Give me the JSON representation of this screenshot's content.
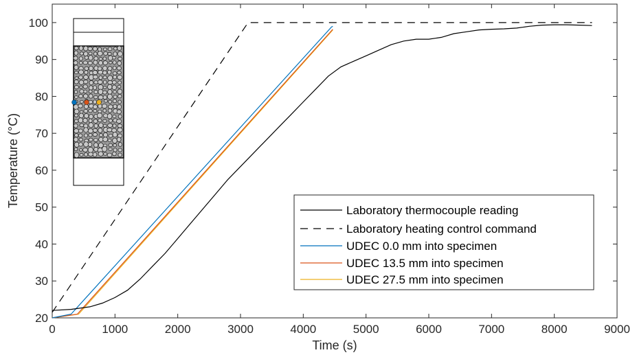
{
  "chart_data": {
    "type": "line",
    "xlabel": "Time (s)",
    "ylabel": "Temperature (°C)",
    "xlim": [
      0,
      9000
    ],
    "ylim": [
      20,
      105
    ],
    "xticks": [
      0,
      1000,
      2000,
      3000,
      4000,
      5000,
      6000,
      7000,
      8000,
      9000
    ],
    "yticks": [
      20,
      30,
      40,
      50,
      60,
      70,
      80,
      90,
      100
    ],
    "grid": false,
    "legend_position": "bottom-right",
    "series": [
      {
        "name": "Laboratory thermocouple reading",
        "color": "#000000",
        "style": "solid",
        "x": [
          0,
          300,
          600,
          800,
          1000,
          1200,
          1400,
          1600,
          1800,
          2000,
          2200,
          2400,
          2600,
          2800,
          3000,
          3200,
          3400,
          3600,
          3800,
          4000,
          4200,
          4400,
          4600,
          4800,
          5000,
          5200,
          5400,
          5600,
          5800,
          6000,
          6200,
          6400,
          6600,
          6800,
          7000,
          7200,
          7400,
          7600,
          7800,
          8000,
          8200,
          8400,
          8600
        ],
        "y": [
          22,
          22.3,
          23,
          24,
          25.5,
          27.5,
          30.5,
          34,
          37.5,
          41.5,
          45.5,
          49.5,
          53.5,
          57.5,
          61,
          64.5,
          68,
          71.5,
          75,
          78.5,
          82,
          85.5,
          88,
          89.5,
          91,
          92.5,
          94,
          95,
          95.5,
          95.5,
          96,
          97,
          97.5,
          98,
          98.2,
          98.3,
          98.5,
          99,
          99.3,
          99.4,
          99.4,
          99.3,
          99.2
        ]
      },
      {
        "name": "Laboratory heating control command",
        "color": "#000000",
        "style": "dashed",
        "x": [
          0,
          3120,
          8600
        ],
        "y": [
          21.5,
          100,
          100
        ]
      },
      {
        "name": "UDEC 0.0 mm into specimen",
        "color": "#0072BD",
        "style": "solid",
        "x": [
          0,
          300,
          4450,
          4470
        ],
        "y": [
          20,
          21,
          98.8,
          99
        ]
      },
      {
        "name": "UDEC 13.5 mm into specimen",
        "color": "#D95319",
        "style": "solid",
        "x": [
          0,
          400,
          4470
        ],
        "y": [
          20,
          21,
          98.2
        ]
      },
      {
        "name": "UDEC 27.5 mm into specimen",
        "color": "#EDB120",
        "style": "solid",
        "x": [
          0,
          420,
          4470
        ],
        "y": [
          20,
          21,
          98
        ]
      }
    ]
  }
}
